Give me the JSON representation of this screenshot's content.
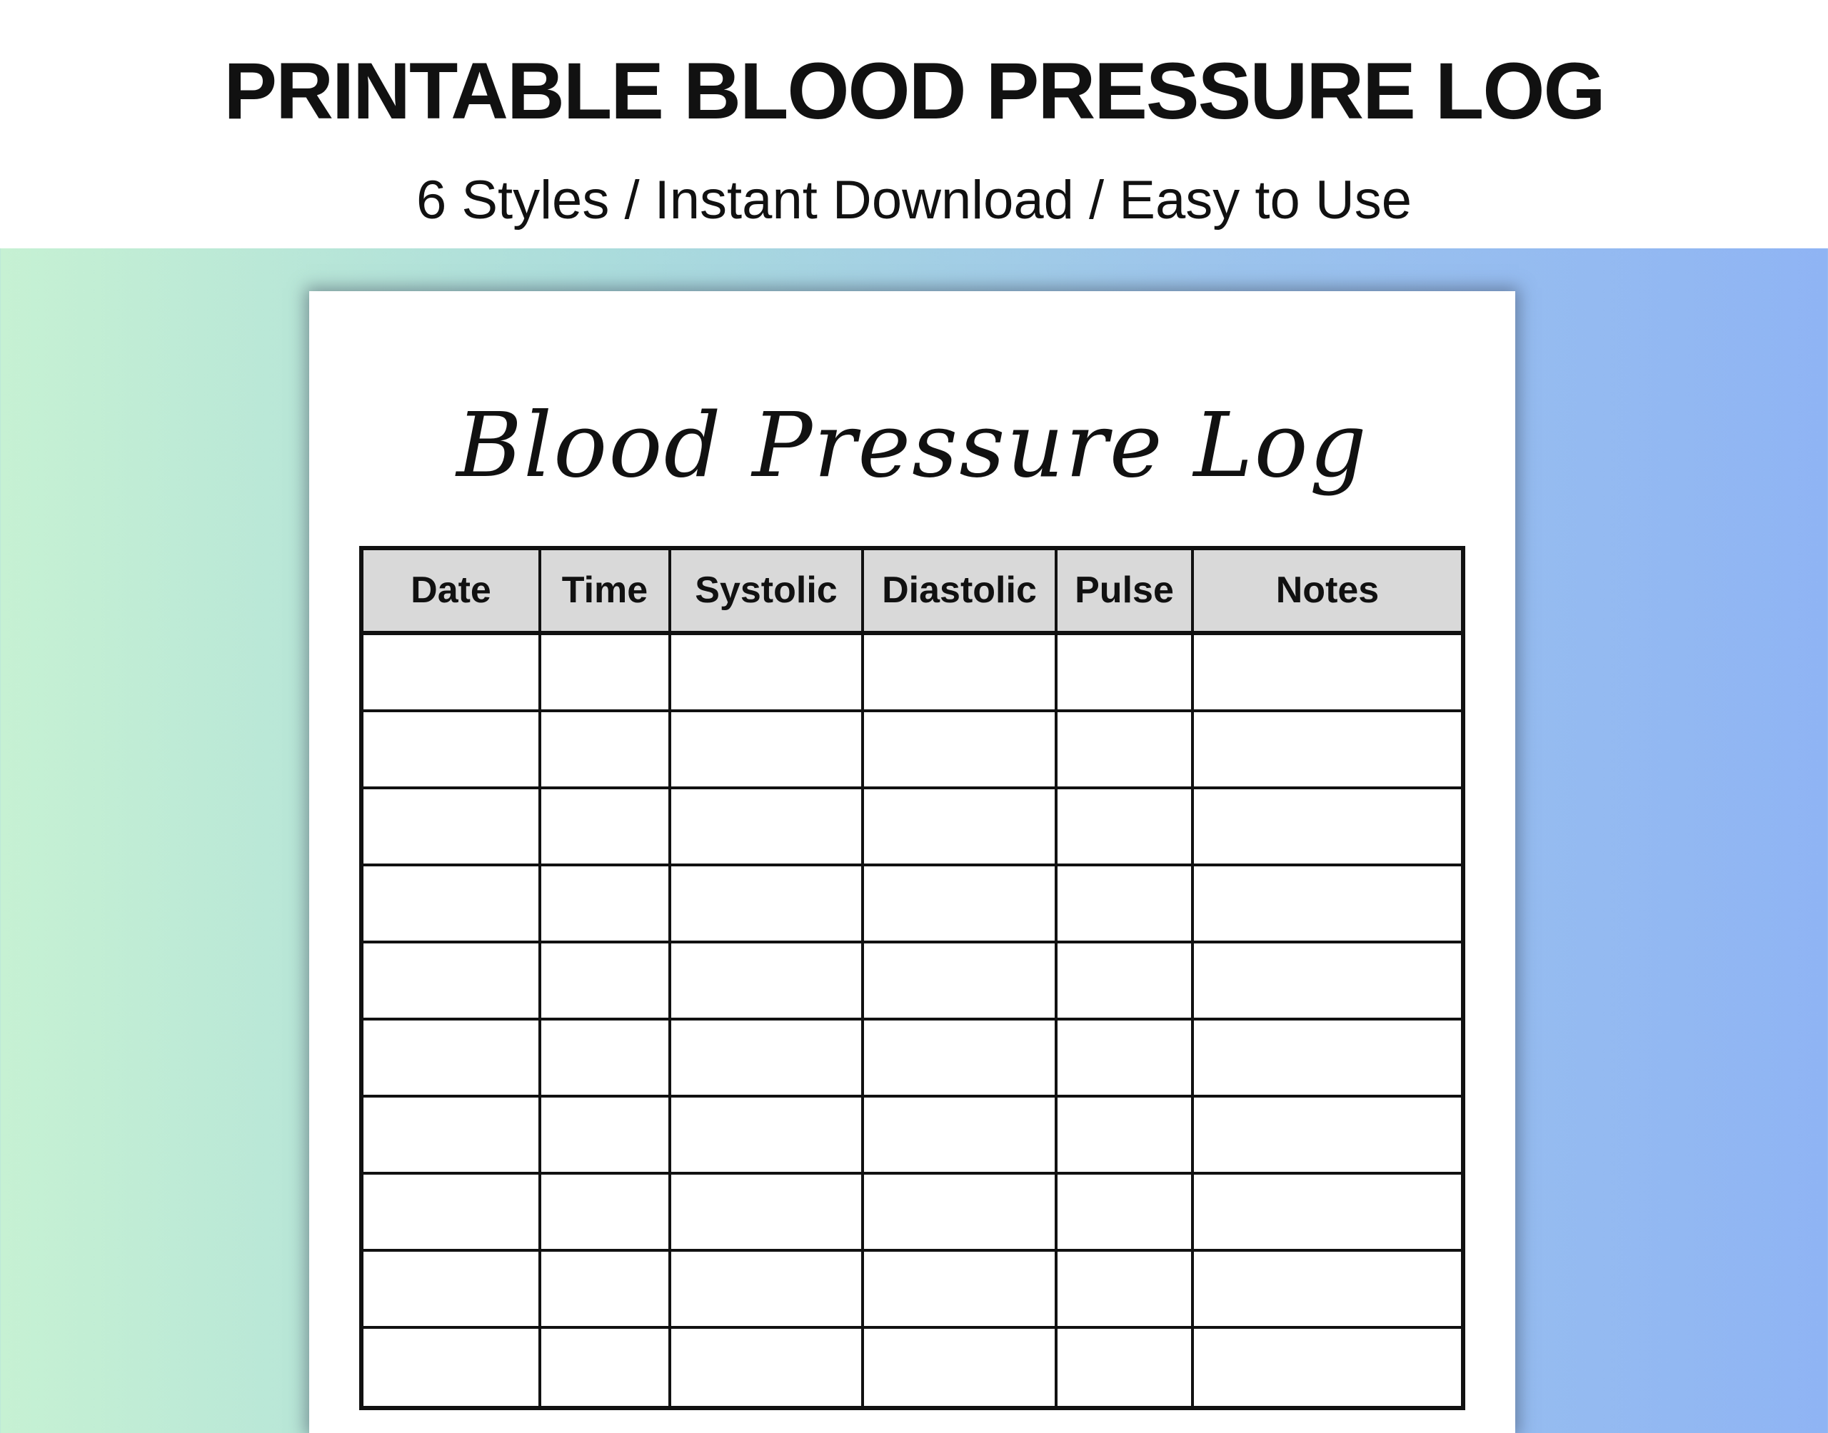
{
  "banner": {
    "title": "PRINTABLE BLOOD PRESSURE LOG",
    "subtitle": "6 Styles / Instant Download / Easy to Use"
  },
  "sheet": {
    "title": "Blood Pressure Log",
    "table": {
      "headers": [
        "Date",
        "Time",
        "Systolic",
        "Diastolic",
        "Pulse",
        "Notes"
      ],
      "rows": [
        [
          "",
          "",
          "",
          "",
          "",
          ""
        ],
        [
          "",
          "",
          "",
          "",
          "",
          ""
        ],
        [
          "",
          "",
          "",
          "",
          "",
          ""
        ],
        [
          "",
          "",
          "",
          "",
          "",
          ""
        ],
        [
          "",
          "",
          "",
          "",
          "",
          ""
        ],
        [
          "",
          "",
          "",
          "",
          "",
          ""
        ],
        [
          "",
          "",
          "",
          "",
          "",
          ""
        ],
        [
          "",
          "",
          "",
          "",
          "",
          ""
        ],
        [
          "",
          "",
          "",
          "",
          "",
          ""
        ],
        [
          "",
          "",
          "",
          "",
          "",
          ""
        ]
      ]
    }
  },
  "colors": {
    "background_gradient_left": "#c6f1d3",
    "background_gradient_mid_green": "#abdcdc",
    "background_gradient_mid_blue": "#9cc4ec",
    "background_gradient_right": "#8fb4f4",
    "banner_background": "#ffffff",
    "sheet_background": "#ffffff",
    "table_header_background": "#d9d9d9",
    "table_border": "#111111",
    "text": "#111111"
  }
}
